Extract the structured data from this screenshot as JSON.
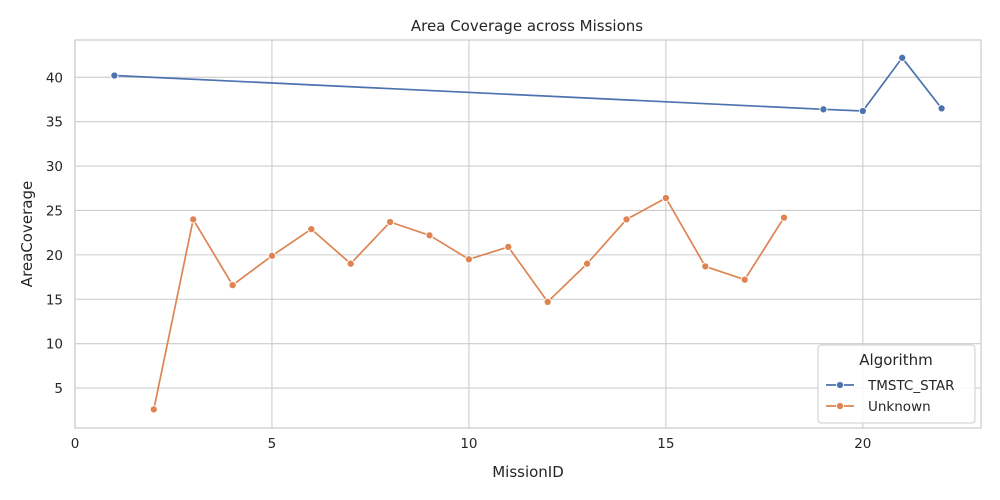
{
  "chart_data": {
    "type": "line",
    "title": "Area Coverage across Missions",
    "xlabel": "MissionID",
    "ylabel": "AreaCoverage",
    "xlim": [
      0,
      23
    ],
    "ylim": [
      0.5,
      44.2
    ],
    "xticks": [
      0,
      5,
      10,
      15,
      20
    ],
    "yticks": [
      5,
      10,
      15,
      20,
      25,
      30,
      35,
      40
    ],
    "grid": true,
    "legend": {
      "title": "Algorithm",
      "placement": "bottom-right"
    },
    "series": [
      {
        "name": "TMSTC_STAR",
        "color": "#4c72b0",
        "points": [
          [
            1,
            40.2
          ],
          [
            19,
            36.4
          ],
          [
            20,
            36.2
          ],
          [
            21,
            42.2
          ],
          [
            22,
            36.5
          ]
        ]
      },
      {
        "name": "Unknown",
        "color": "#dd8452",
        "points": [
          [
            2,
            2.6
          ],
          [
            3,
            24.0
          ],
          [
            4,
            16.6
          ],
          [
            5,
            19.9
          ],
          [
            6,
            22.9
          ],
          [
            7,
            19.0
          ],
          [
            8,
            23.7
          ],
          [
            9,
            22.2
          ],
          [
            10,
            19.5
          ],
          [
            11,
            20.9
          ],
          [
            12,
            14.7
          ],
          [
            13,
            19.0
          ],
          [
            14,
            24.0
          ],
          [
            15,
            26.4
          ],
          [
            16,
            18.7
          ],
          [
            17,
            17.2
          ],
          [
            18,
            24.2
          ]
        ]
      }
    ]
  }
}
